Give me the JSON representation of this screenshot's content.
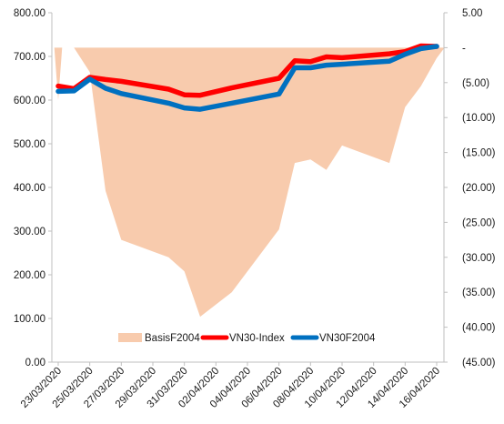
{
  "chart_data": {
    "type": "combo",
    "x": [
      "23/03/2020",
      "24/03/2020",
      "25/03/2020",
      "26/03/2020",
      "27/03/2020",
      "30/03/2020",
      "31/03/2020",
      "01/04/2020",
      "03/04/2020",
      "06/04/2020",
      "07/04/2020",
      "08/04/2020",
      "09/04/2020",
      "10/04/2020",
      "13/04/2020",
      "14/04/2020",
      "15/04/2020",
      "16/04/2020"
    ],
    "x_tick_labels": [
      "23/03/2020",
      "25/03/2020",
      "27/03/2020",
      "29/03/2020",
      "31/03/2020",
      "02/04/2020",
      "04/04/2020",
      "06/04/2020",
      "08/04/2020",
      "10/04/2020",
      "12/04/2020",
      "14/04/2020",
      "16/04/2020"
    ],
    "left_axis": {
      "min": 0,
      "max": 800,
      "step": 100,
      "tick_labels": [
        "0.00",
        "100.00",
        "200.00",
        "300.00",
        "400.00",
        "500.00",
        "600.00",
        "700.00",
        "800.00"
      ]
    },
    "right_axis": {
      "min": -45,
      "max": 5,
      "step": 5,
      "tick_labels": [
        "(45.00)",
        "(40.00)",
        "(35.00)",
        "(30.00)",
        "(25.00)",
        "(20.00)",
        "(15.00)",
        "(10.00)",
        "(5.00)",
        "-",
        "5.00"
      ]
    },
    "series": [
      {
        "name": "BasisF2004",
        "type": "area",
        "axis": "right",
        "color": "#f8cbad",
        "points": [
          [
            "2020-03-22T18:00",
            0
          ],
          [
            "2020-03-23T00:00",
            -7.5
          ],
          [
            "2020-03-23T06:00",
            0
          ],
          [
            "2020-03-24T00:00",
            0
          ],
          [
            "2020-03-25T00:00",
            -3.5
          ],
          [
            "2020-03-26T00:00",
            -20.5
          ],
          [
            "2020-03-27T00:00",
            -27.5
          ],
          [
            "2020-03-30T00:00",
            -30
          ],
          [
            "2020-03-31T00:00",
            -32
          ],
          [
            "2020-04-01T00:00",
            -38.5
          ],
          [
            "2020-04-03T00:00",
            -35
          ],
          [
            "2020-04-06T00:00",
            -26
          ],
          [
            "2020-04-07T00:00",
            -16.5
          ],
          [
            "2020-04-08T00:00",
            -16
          ],
          [
            "2020-04-09T00:00",
            -17.5
          ],
          [
            "2020-04-10T00:00",
            -14
          ],
          [
            "2020-04-13T00:00",
            -16.5
          ],
          [
            "2020-04-14T00:00",
            -8.5
          ],
          [
            "2020-04-15T00:00",
            -5.5
          ],
          [
            "2020-04-16T00:00",
            -1.5
          ],
          [
            "2020-04-16T12:00",
            0
          ]
        ]
      },
      {
        "name": "VN30-Index",
        "type": "line",
        "axis": "left",
        "color": "#ff0000",
        "values": [
          632,
          626,
          652,
          647,
          643,
          625,
          612,
          611,
          628,
          650,
          690,
          688,
          699,
          697,
          706,
          711,
          724,
          723
        ]
      },
      {
        "name": "VN30F2004",
        "type": "line",
        "axis": "left",
        "color": "#0070c0",
        "values": [
          620,
          621,
          648,
          627,
          615,
          593,
          582,
          579,
          593,
          614,
          674,
          674,
          680,
          682,
          689,
          705,
          718,
          723
        ]
      }
    ],
    "legend": {
      "position": "bottom-inside"
    },
    "grid": false
  }
}
